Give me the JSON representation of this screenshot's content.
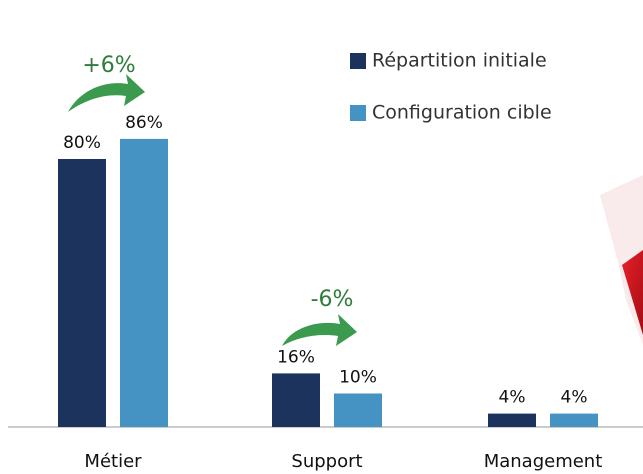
{
  "chart_data": {
    "type": "bar",
    "categories": [
      "Métier",
      "Support",
      "Management"
    ],
    "series": [
      {
        "name": "Répartition initiale",
        "color": "#1c335e",
        "values": [
          80,
          16,
          4
        ],
        "value_labels": [
          "80%",
          "16%",
          "4%"
        ]
      },
      {
        "name": "Configuration cible",
        "color": "#4593c2",
        "values": [
          86,
          10,
          4
        ],
        "value_labels": [
          "86%",
          "10%",
          "4%"
        ]
      }
    ],
    "annotations": [
      "+6%",
      "-6%"
    ]
  }
}
